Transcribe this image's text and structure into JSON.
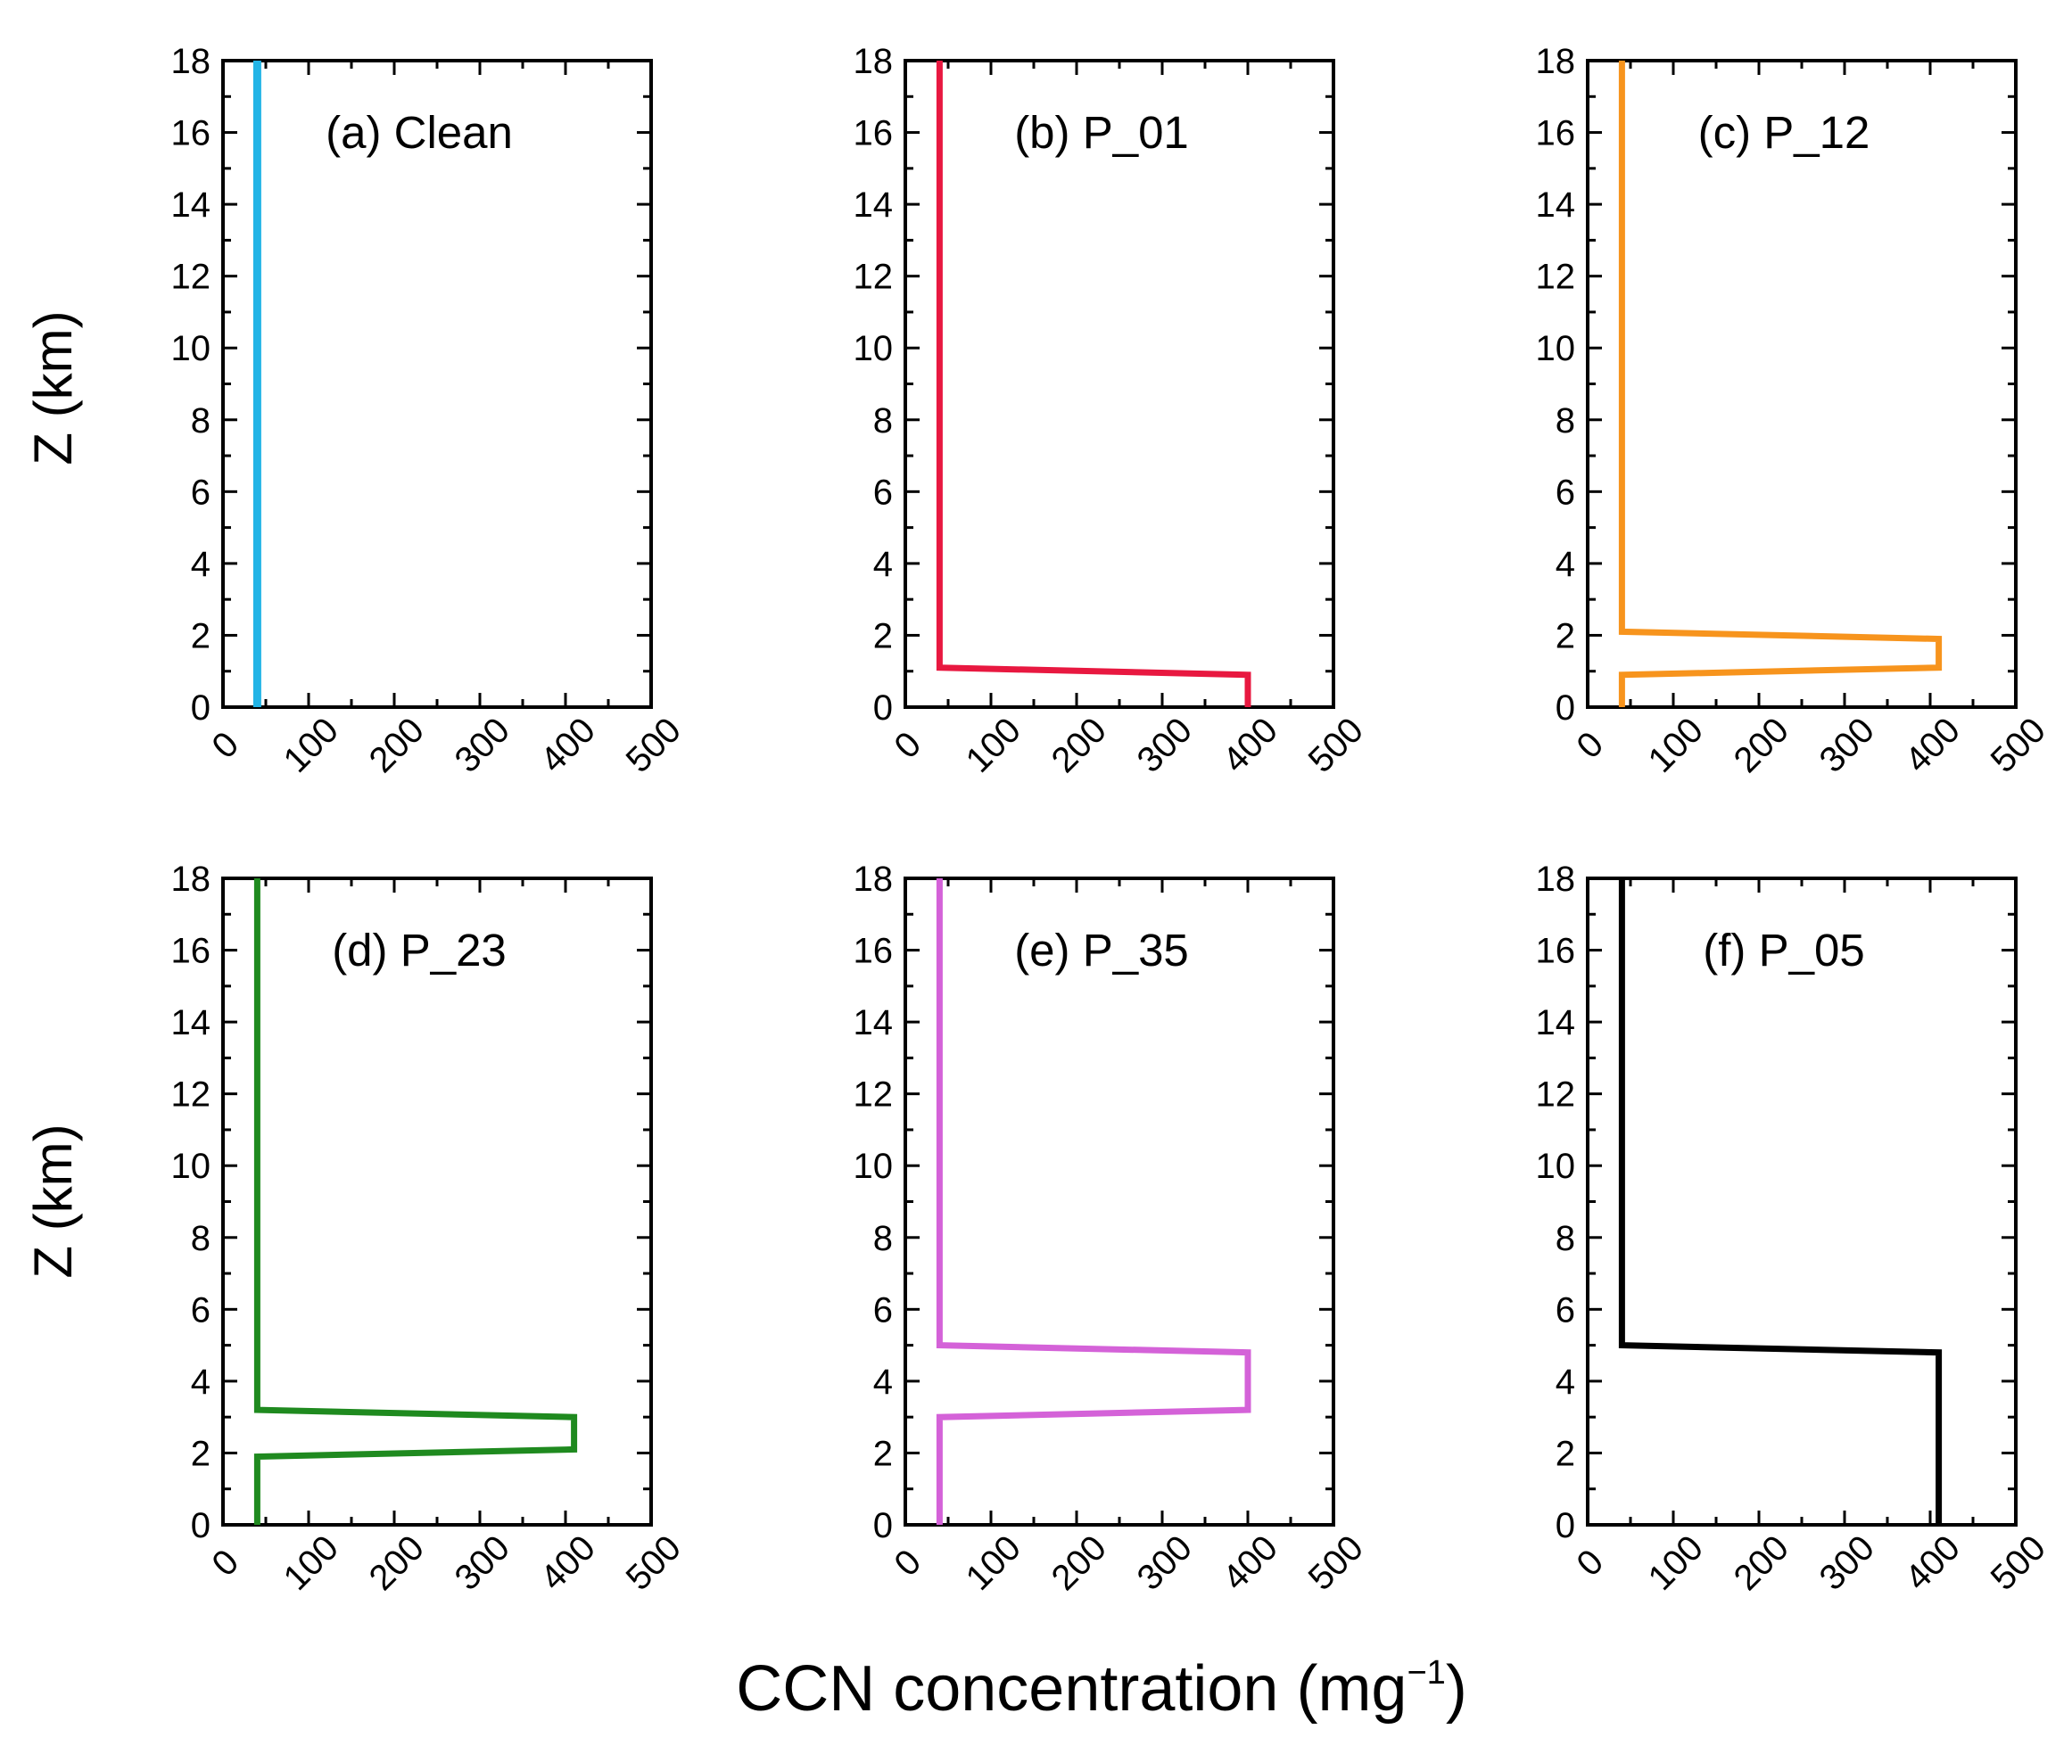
{
  "chart_data": [
    {
      "type": "line",
      "title": "(a) Clean",
      "xlabel": "CCN concentration (mg",
      "xlabel_superscript": "−1",
      "xlabel_close": ")",
      "ylabel": "Z (km)",
      "xlim": [
        0,
        500
      ],
      "ylim": [
        0,
        18
      ],
      "xticks": [
        "0",
        "100",
        "200",
        "300",
        "400",
        "500"
      ],
      "yticks": [
        "0",
        "2",
        "4",
        "6",
        "8",
        "10",
        "12",
        "14",
        "16",
        "18"
      ],
      "color": "#22b4e6",
      "series": [
        {
          "name": "Clean",
          "x": [
            40,
            40
          ],
          "y": [
            0,
            18
          ]
        }
      ]
    },
    {
      "type": "line",
      "title": "(b) P_01",
      "xlabel": "CCN concentration (mg",
      "ylabel": "",
      "xlim": [
        0,
        500
      ],
      "ylim": [
        0,
        18
      ],
      "xticks": [
        "0",
        "100",
        "200",
        "300",
        "400",
        "500"
      ],
      "yticks": [
        "0",
        "2",
        "4",
        "6",
        "8",
        "10",
        "12",
        "14",
        "16",
        "18"
      ],
      "color": "#e81840",
      "series": [
        {
          "name": "P_01",
          "x": [
            400,
            400,
            40,
            40
          ],
          "y": [
            0,
            0.9,
            1.1,
            18
          ]
        }
      ]
    },
    {
      "type": "line",
      "title": "(c) P_12",
      "xlabel": "CCN concentration (mg",
      "ylabel": "",
      "xlim": [
        0,
        500
      ],
      "ylim": [
        0,
        18
      ],
      "xticks": [
        "0",
        "100",
        "200",
        "300",
        "400",
        "500"
      ],
      "yticks": [
        "0",
        "2",
        "4",
        "6",
        "8",
        "10",
        "12",
        "14",
        "16",
        "18"
      ],
      "color": "#f7941d",
      "series": [
        {
          "name": "P_12",
          "x": [
            40,
            40,
            410,
            410,
            40,
            40
          ],
          "y": [
            0,
            0.9,
            1.1,
            1.9,
            2.1,
            18
          ]
        }
      ]
    },
    {
      "type": "line",
      "title": "(d) P_23",
      "xlabel": "CCN concentration (mg",
      "ylabel": "Z (km)",
      "xlim": [
        0,
        500
      ],
      "ylim": [
        0,
        18
      ],
      "xticks": [
        "0",
        "100",
        "200",
        "300",
        "400",
        "500"
      ],
      "yticks": [
        "0",
        "2",
        "4",
        "6",
        "8",
        "10",
        "12",
        "14",
        "16",
        "18"
      ],
      "color": "#1f8a1f",
      "series": [
        {
          "name": "P_23",
          "x": [
            40,
            40,
            410,
            410,
            40,
            40
          ],
          "y": [
            0,
            1.9,
            2.1,
            3.0,
            3.2,
            18
          ]
        }
      ]
    },
    {
      "type": "line",
      "title": "(e) P_35",
      "xlabel": "CCN concentration (mg",
      "ylabel": "",
      "xlim": [
        0,
        500
      ],
      "ylim": [
        0,
        18
      ],
      "xticks": [
        "0",
        "100",
        "200",
        "300",
        "400",
        "500"
      ],
      "yticks": [
        "0",
        "2",
        "4",
        "6",
        "8",
        "10",
        "12",
        "14",
        "16",
        "18"
      ],
      "color": "#d462d8",
      "series": [
        {
          "name": "P_35",
          "x": [
            40,
            40,
            400,
            400,
            40,
            40
          ],
          "y": [
            0,
            3.0,
            3.2,
            4.8,
            5.0,
            18
          ]
        }
      ]
    },
    {
      "type": "line",
      "title": "(f) P_05",
      "xlabel": "CCN concentration (mg",
      "ylabel": "",
      "xlim": [
        0,
        500
      ],
      "ylim": [
        0,
        18
      ],
      "xticks": [
        "0",
        "100",
        "200",
        "300",
        "400",
        "500"
      ],
      "yticks": [
        "0",
        "2",
        "4",
        "6",
        "8",
        "10",
        "12",
        "14",
        "16",
        "18"
      ],
      "color": "#000000",
      "series": [
        {
          "name": "P_05",
          "x": [
            410,
            410,
            40,
            40
          ],
          "y": [
            0,
            4.8,
            5.0,
            18
          ]
        }
      ]
    }
  ],
  "figure": {
    "ylabel_top": "Z (km)",
    "ylabel_bottom": "Z (km)",
    "xlabel_main": "CCN concentration (mg",
    "xlabel_sup": "−1",
    "xlabel_close": ")"
  }
}
